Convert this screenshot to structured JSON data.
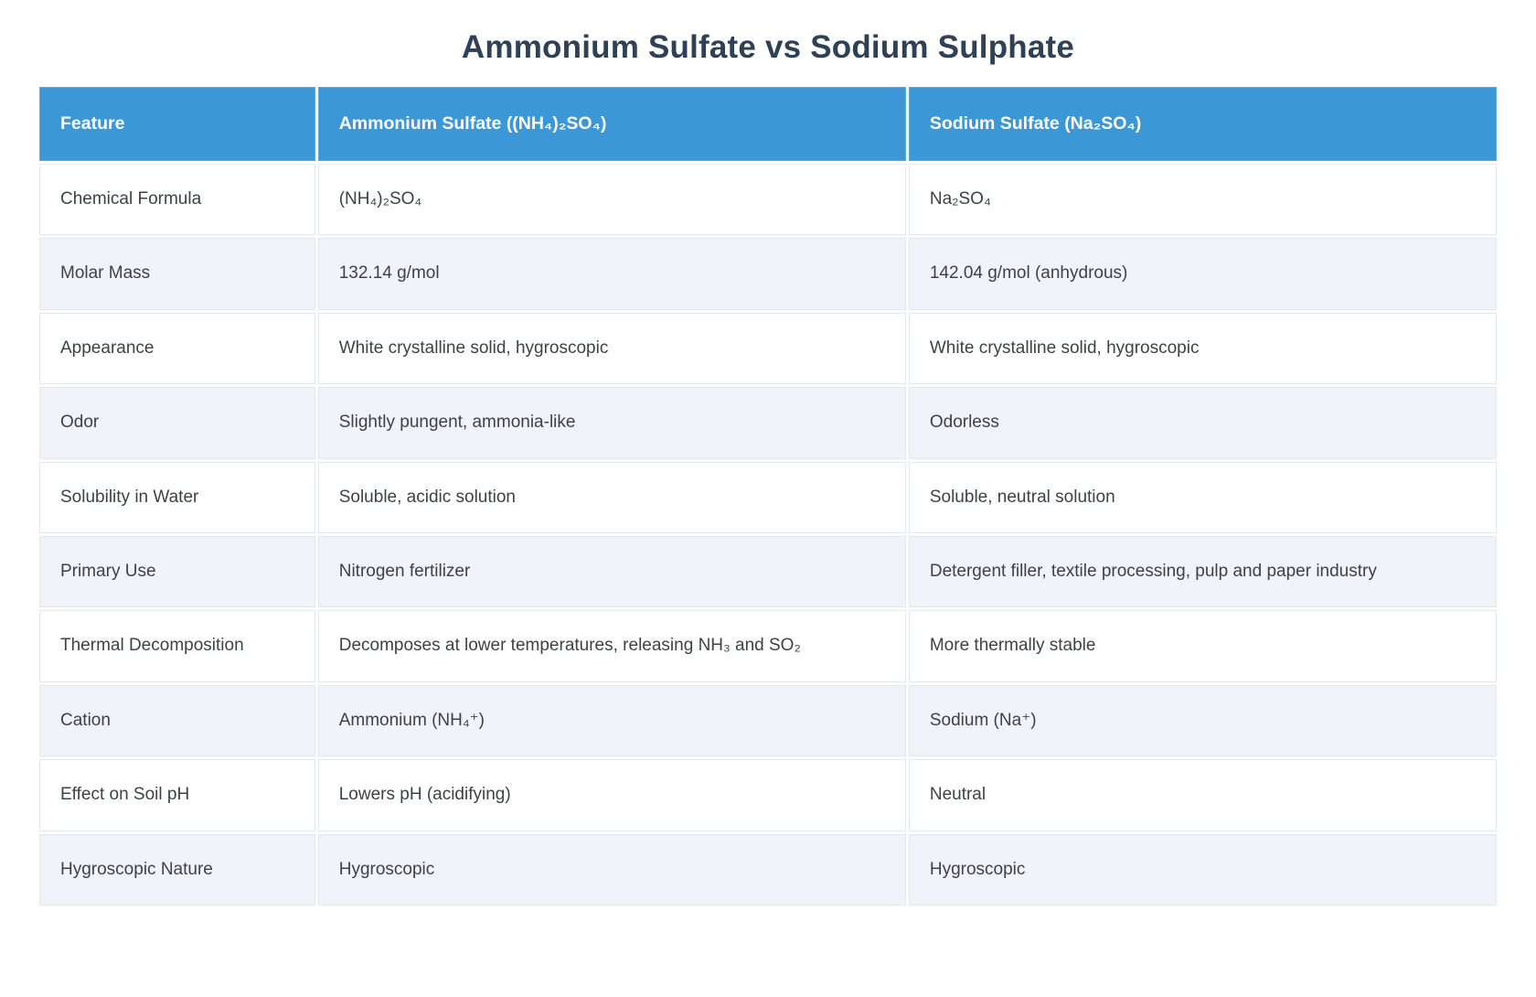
{
  "page": {
    "title": "Ammonium Sulfate vs Sodium Sulphate"
  },
  "colors": {
    "header_bg": "#3b97d5",
    "header_text": "#ffffff",
    "row_alt_bg": "#f0f4f8",
    "row_bg": "#ffffff",
    "cell_border": "#e3e8ee",
    "title_color": "#2e4156",
    "body_text": "#3d4247"
  },
  "table": {
    "headers": [
      "Feature",
      "Ammonium Sulfate ((NH₄)₂SO₄)",
      "Sodium Sulfate (Na₂SO₄)"
    ],
    "rows": [
      {
        "feature": "Chemical Formula",
        "ammonium": "(NH₄)₂SO₄",
        "sodium": "Na₂SO₄"
      },
      {
        "feature": "Molar Mass",
        "ammonium": "132.14 g/mol",
        "sodium": "142.04 g/mol (anhydrous)"
      },
      {
        "feature": "Appearance",
        "ammonium": "White crystalline solid, hygroscopic",
        "sodium": "White crystalline solid, hygroscopic"
      },
      {
        "feature": "Odor",
        "ammonium": "Slightly pungent, ammonia-like",
        "sodium": "Odorless"
      },
      {
        "feature": "Solubility in Water",
        "ammonium": "Soluble, acidic solution",
        "sodium": "Soluble, neutral solution"
      },
      {
        "feature": "Primary Use",
        "ammonium": "Nitrogen fertilizer",
        "sodium": "Detergent filler, textile processing, pulp and paper industry"
      },
      {
        "feature": "Thermal Decomposition",
        "ammonium": "Decomposes at lower temperatures, releasing NH₃ and SO₂",
        "sodium": "More thermally stable"
      },
      {
        "feature": "Cation",
        "ammonium": "Ammonium (NH₄⁺)",
        "sodium": "Sodium (Na⁺)"
      },
      {
        "feature": "Effect on Soil pH",
        "ammonium": "Lowers pH (acidifying)",
        "sodium": "Neutral"
      },
      {
        "feature": "Hygroscopic Nature",
        "ammonium": "Hygroscopic",
        "sodium": "Hygroscopic"
      }
    ]
  }
}
